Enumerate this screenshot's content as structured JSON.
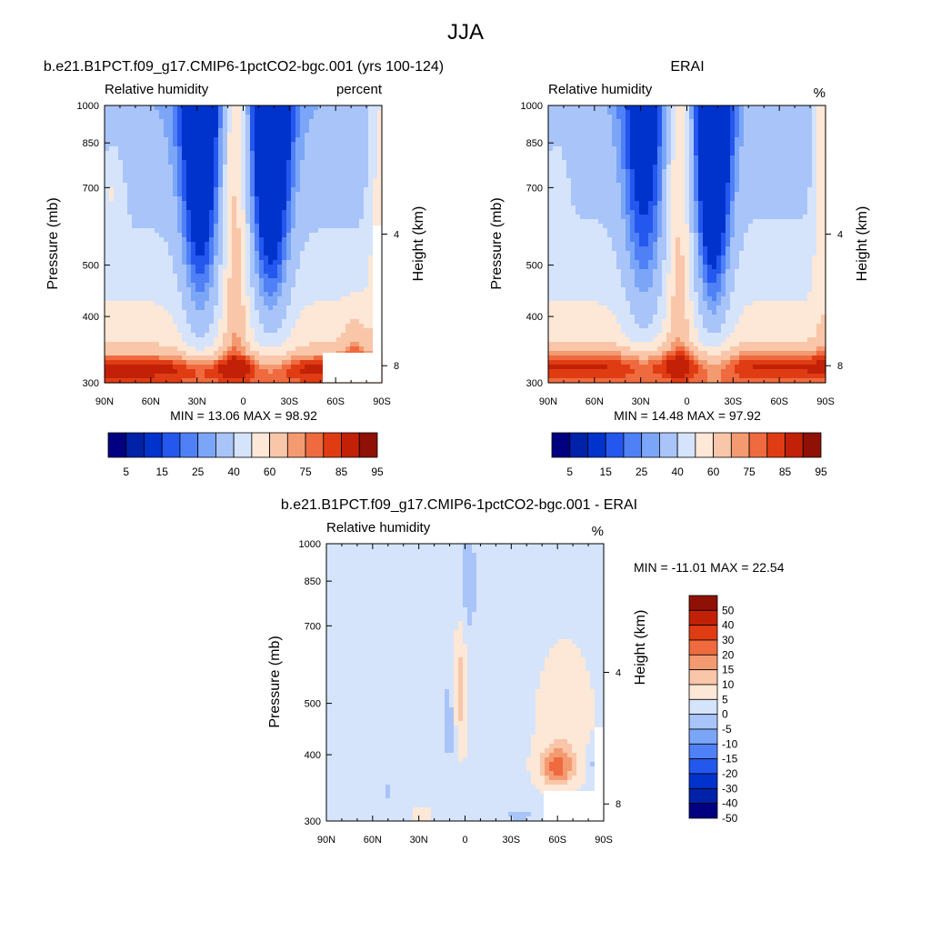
{
  "figure_title": "JJA",
  "colors": {
    "rh_levels": [
      "#000080",
      "#0022a8",
      "#0033cc",
      "#2457ee",
      "#4f80f5",
      "#7ba6f8",
      "#a9c4f8",
      "#d5e4fb",
      "#fde7d6",
      "#f9c6a9",
      "#f49a71",
      "#ef6a3f",
      "#e03c14",
      "#c22108",
      "#8f1004"
    ],
    "diff_levels": [
      "#000080",
      "#0022a8",
      "#0033cc",
      "#2457ee",
      "#4f80f5",
      "#7ba6f8",
      "#a9c4f8",
      "#d5e4fb",
      "#fde7d6",
      "#f9c6a9",
      "#f49a71",
      "#ef6a3f",
      "#e03c14",
      "#c22108",
      "#8f1004"
    ]
  },
  "chart_data": [
    {
      "type": "heatmap",
      "title": "b.e21.B1PCT.f09_g17.CMIP6-1pctCO2-bgc.001 (yrs 100-124)",
      "left_label": "Relative humidity",
      "right_label": "percent",
      "ylabel": "Pressure (mb)",
      "y2label": "Height (km)",
      "xticks": [
        "90N",
        "60N",
        "30N",
        "0",
        "30S",
        "60S",
        "90S"
      ],
      "yticks": [
        "300",
        "400",
        "500",
        "700",
        "850",
        "1000"
      ],
      "y2ticks": [
        "8",
        "4"
      ],
      "min_max_text": "MIN =  13.06   MAX =  98.92",
      "colorbar_labels": [
        "5",
        "15",
        "25",
        "40",
        "60",
        "75",
        "85",
        "95"
      ],
      "x": [
        90,
        -90
      ],
      "ylim": [
        1000,
        300
      ],
      "fields": {
        "a": 0
      }
    },
    {
      "type": "heatmap",
      "title": "ERAI",
      "left_label": "Relative humidity",
      "right_label": "%",
      "ylabel": "Pressure (mb)",
      "y2label": "Height (km)",
      "xticks": [
        "90N",
        "60N",
        "30N",
        "0",
        "30S",
        "60S",
        "90S"
      ],
      "yticks": [
        "300",
        "400",
        "500",
        "700",
        "850",
        "1000"
      ],
      "y2ticks": [
        "8",
        "4"
      ],
      "min_max_text": "MIN =  14.48   MAX =  97.92",
      "colorbar_labels": [
        "5",
        "15",
        "25",
        "40",
        "60",
        "75",
        "85",
        "95"
      ],
      "x": [
        90,
        -90
      ],
      "ylim": [
        1000,
        300
      ],
      "fields": {
        "a": 1
      }
    },
    {
      "type": "heatmap",
      "title": "b.e21.B1PCT.f09_g17.CMIP6-1pctCO2-bgc.001 - ERAI",
      "left_label": "Relative humidity",
      "right_label": "%",
      "ylabel": "Pressure (mb)",
      "y2label": "Height (km)",
      "xticks": [
        "90N",
        "60N",
        "30N",
        "0",
        "30S",
        "60S",
        "90S"
      ],
      "yticks": [
        "300",
        "400",
        "500",
        "700",
        "850",
        "1000"
      ],
      "y2ticks": [
        "8",
        "4"
      ],
      "min_max_text": "MIN = -11.01   MAX =  22.54",
      "colorbar_labels": [
        "50",
        "40",
        "30",
        "20",
        "15",
        "10",
        "5",
        "0",
        "-5",
        "-10",
        "-15",
        "-20",
        "-30",
        "-40",
        "-50"
      ],
      "x": [
        90,
        -90
      ],
      "ylim": [
        1000,
        300
      ],
      "fields": {
        "a": 2
      }
    }
  ]
}
